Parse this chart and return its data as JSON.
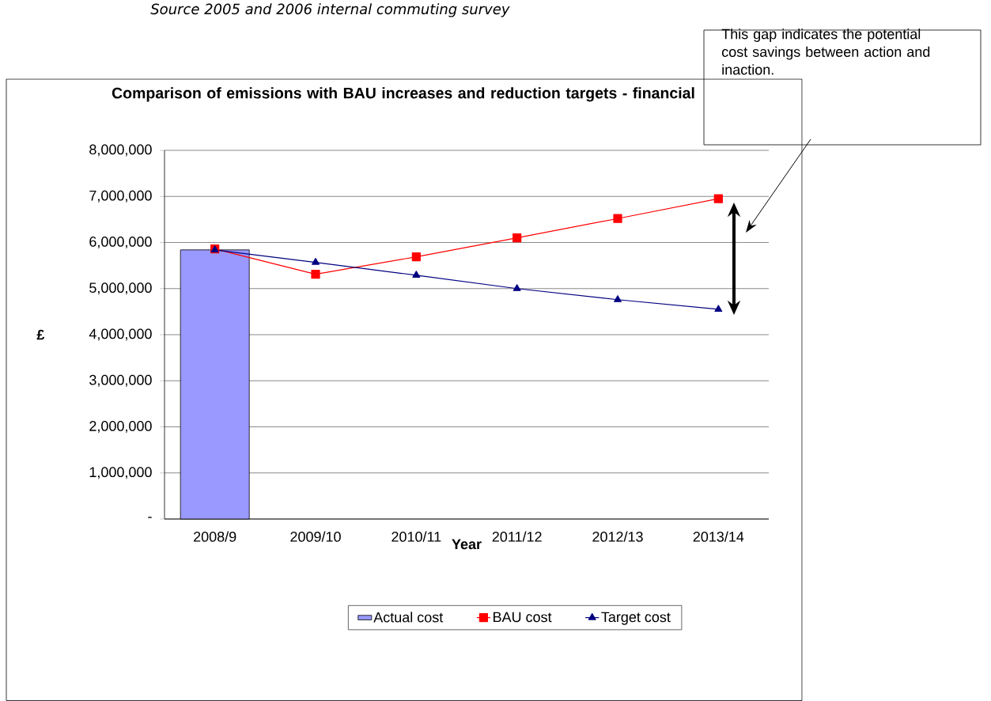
{
  "chart_data": {
    "type": "bar",
    "title": "Comparison of emissions with BAU increases and reduction targets - financial",
    "xlabel": "Year",
    "ylabel": "£",
    "categories": [
      "2008/9",
      "2009/10",
      "2010/11",
      "2011/12",
      "2012/13",
      "2013/14"
    ],
    "series": [
      {
        "name": "Actual cost",
        "type": "bar",
        "color": "#9999ff",
        "values": [
          5840000,
          null,
          null,
          null,
          null,
          null
        ]
      },
      {
        "name": "BAU cost",
        "type": "line",
        "color": "#ff0000",
        "marker": "square",
        "values": [
          5860000,
          5310000,
          5690000,
          6100000,
          6520000,
          6950000
        ]
      },
      {
        "name": "Target cost",
        "type": "line",
        "color": "#000080",
        "marker": "triangle",
        "values": [
          5840000,
          5570000,
          5290000,
          5000000,
          4760000,
          4550000
        ]
      }
    ],
    "ylim": [
      0,
      8000000
    ],
    "yticks": [
      {
        "value": 0,
        "label": "-"
      },
      {
        "value": 1000000,
        "label": "1,000,000"
      },
      {
        "value": 2000000,
        "label": "2,000,000"
      },
      {
        "value": 3000000,
        "label": "3,000,000"
      },
      {
        "value": 4000000,
        "label": "4,000,000"
      },
      {
        "value": 5000000,
        "label": "5,000,000"
      },
      {
        "value": 6000000,
        "label": "6,000,000"
      },
      {
        "value": 7000000,
        "label": "7,000,000"
      },
      {
        "value": 8000000,
        "label": "8,000,000"
      }
    ],
    "grid": "y",
    "legend": "bottom",
    "line_style": "solid",
    "annotations": [
      "Source 2005 and 2006 internal commuting survey",
      "This gap indicates the potential cost savings between action and inaction."
    ]
  }
}
